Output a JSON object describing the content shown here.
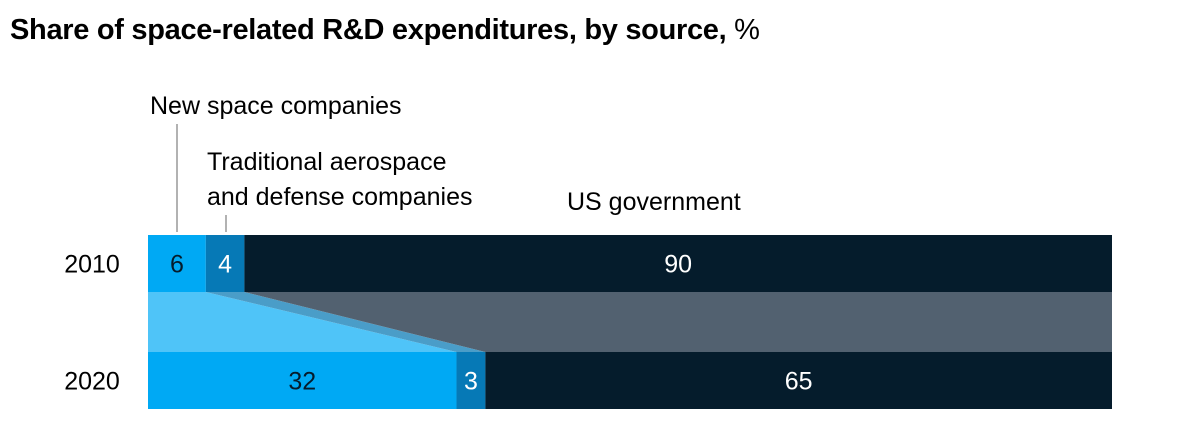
{
  "chart_data": {
    "type": "bar",
    "stacked": true,
    "orientation": "horizontal",
    "title": "Share of space-related R&D expenditures, by source,",
    "unit": "%",
    "categories": [
      "2010",
      "2020"
    ],
    "series": [
      {
        "name": "New space companies",
        "values": [
          6,
          32
        ],
        "color": "#00a9f4",
        "label_color": "#051c2c"
      },
      {
        "name": "Traditional aerospace and defense companies",
        "name_lines": [
          "Traditional aerospace",
          "and defense companies"
        ],
        "values": [
          4,
          3
        ],
        "color": "#0679b6",
        "label_color": "#ffffff"
      },
      {
        "name": "US government",
        "values": [
          90,
          65
        ],
        "color": "#051c2c",
        "label_color": "#ffffff"
      }
    ],
    "connector_colors": [
      "#4fc4f8",
      "#4a9dc8",
      "#526170"
    ],
    "xlim": [
      0,
      100
    ]
  }
}
